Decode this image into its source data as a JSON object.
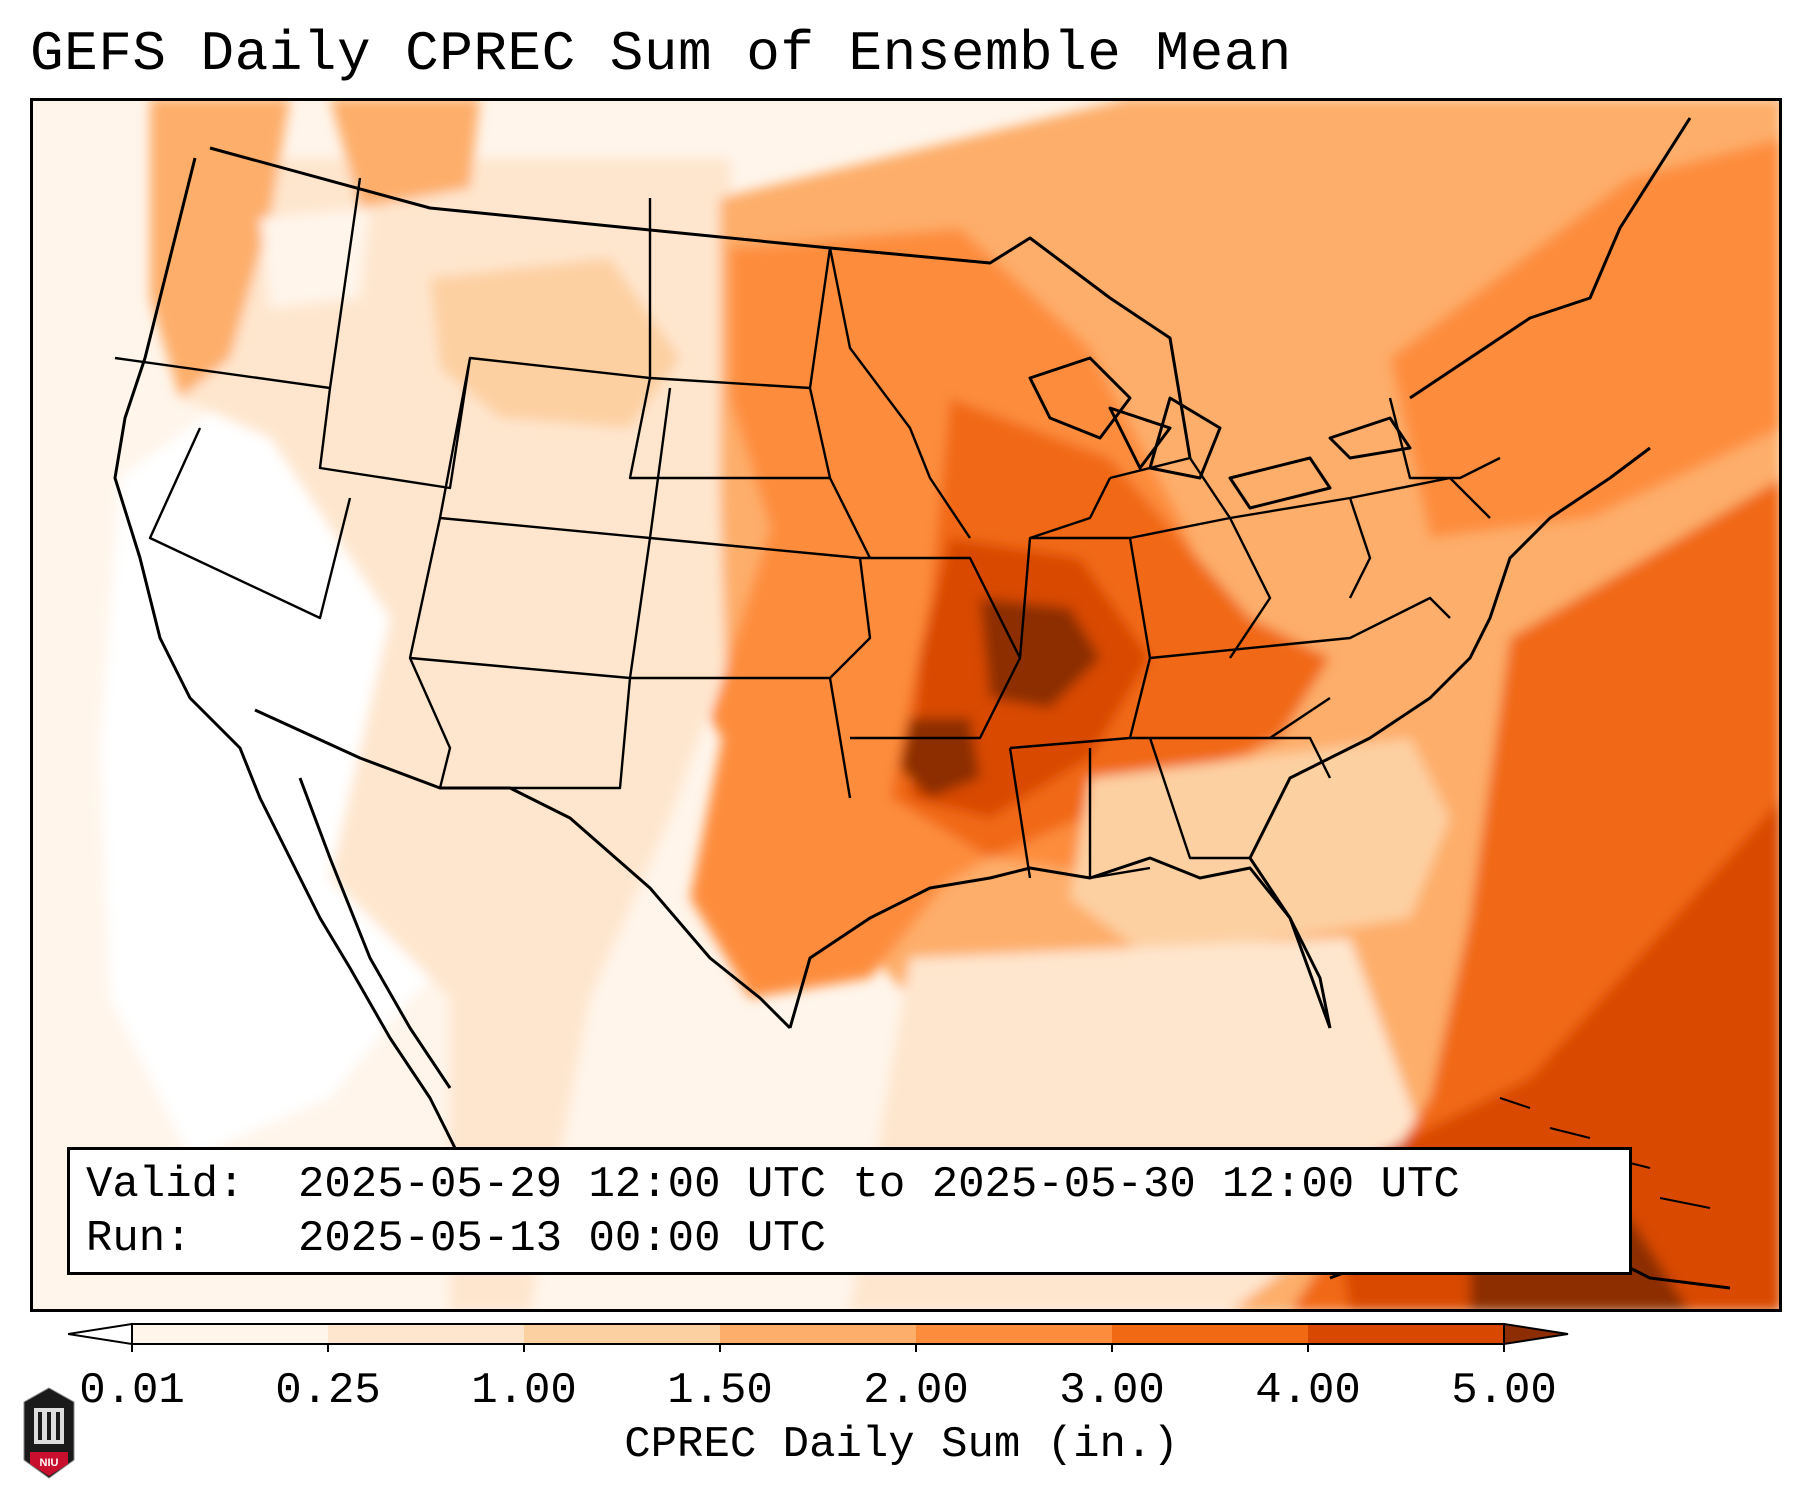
{
  "title": "GEFS Daily CPREC Sum of Ensemble Mean",
  "info": {
    "valid_label": "Valid:",
    "valid_value": "2025-05-29 12:00 UTC to 2025-05-30 12:00 UTC",
    "run_label": "Run:",
    "run_value": "2025-05-13 00:00 UTC"
  },
  "colorbar": {
    "label": "CPREC Daily Sum (in.)",
    "ticks": [
      "0.01",
      "0.25",
      "1.00",
      "1.50",
      "2.00",
      "3.00",
      "4.00",
      "5.00"
    ],
    "bins": [
      {
        "from": "0.01",
        "to": "0.25",
        "color": "#fff5eb"
      },
      {
        "from": "0.25",
        "to": "1.00",
        "color": "#fee6ce"
      },
      {
        "from": "1.00",
        "to": "1.50",
        "color": "#fdd0a2"
      },
      {
        "from": "1.50",
        "to": "2.00",
        "color": "#fdae6b"
      },
      {
        "from": "2.00",
        "to": "3.00",
        "color": "#fd8d3c"
      },
      {
        "from": "3.00",
        "to": "4.00",
        "color": "#f16913"
      },
      {
        "from": "4.00",
        "to": "5.00",
        "color": "#d94801"
      }
    ],
    "under_color": "#ffffff",
    "over_color": "#8c2d04"
  },
  "map": {
    "region": "Contiguous United States",
    "background_color": "#fff5eb",
    "precip_areas": [
      {
        "region": "Pacific Northwest coast",
        "color": "#fdae6b"
      },
      {
        "region": "Northern Rockies",
        "color": "#fdd0a2"
      },
      {
        "region": "Northern Plains",
        "color": "#fd8d3c"
      },
      {
        "region": "Upper Midwest",
        "color": "#f16913"
      },
      {
        "region": "Central Plains and Mid-Mississippi Valley",
        "color": "#d94801"
      },
      {
        "region": "Missouri and Oklahoma maximum",
        "color": "#8c2d04"
      },
      {
        "region": "Texas",
        "color": "#fd8d3c"
      },
      {
        "region": "Ohio Valley",
        "color": "#f16913"
      },
      {
        "region": "Northeast",
        "color": "#fd8d3c"
      },
      {
        "region": "Southeast",
        "color": "#fdd0a2"
      },
      {
        "region": "Western Atlantic",
        "color": "#f16913"
      },
      {
        "region": "Caribbean and Bahamas",
        "color": "#d94801"
      },
      {
        "region": "Desert Southwest",
        "color": "#ffffff"
      }
    ]
  },
  "logo": {
    "text": "NIU",
    "color": "#c8102e"
  }
}
